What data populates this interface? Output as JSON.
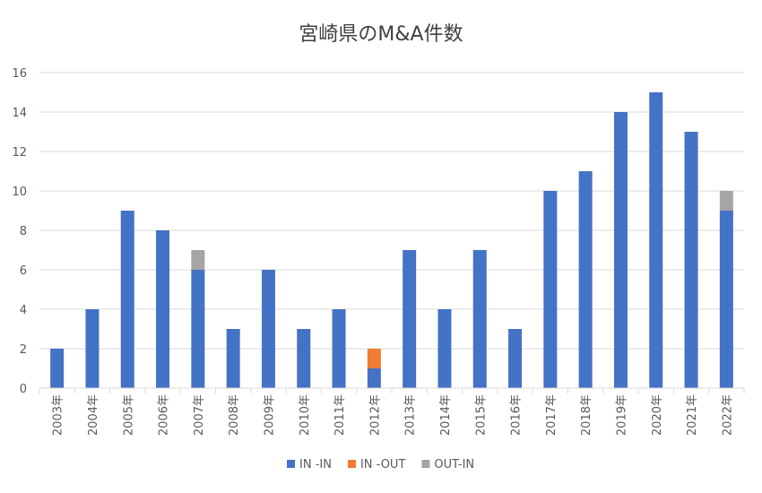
{
  "chart_data": {
    "type": "bar",
    "stacked": true,
    "title": "宮崎県のM&A件数",
    "xlabel": "",
    "ylabel": "",
    "ylim": [
      0,
      16
    ],
    "yticks": [
      0,
      2,
      4,
      6,
      8,
      10,
      12,
      14,
      16
    ],
    "grid": true,
    "legend_position": "bottom",
    "categories": [
      "2003年",
      "2004年",
      "2005年",
      "2006年",
      "2007年",
      "2008年",
      "2009年",
      "2010年",
      "2011年",
      "2012年",
      "2013年",
      "2014年",
      "2015年",
      "2016年",
      "2017年",
      "2018年",
      "2019年",
      "2020年",
      "2021年",
      "2022年"
    ],
    "series": [
      {
        "name": "IN -IN",
        "color": "#4472C4",
        "values": [
          2,
          4,
          9,
          8,
          6,
          3,
          6,
          3,
          4,
          1,
          7,
          4,
          7,
          3,
          10,
          11,
          14,
          15,
          13,
          9
        ]
      },
      {
        "name": "IN -OUT",
        "color": "#ED7D31",
        "values": [
          0,
          0,
          0,
          0,
          0,
          0,
          0,
          0,
          0,
          1,
          0,
          0,
          0,
          0,
          0,
          0,
          0,
          0,
          0,
          0
        ]
      },
      {
        "name": "OUT-IN",
        "color": "#A5A5A5",
        "values": [
          0,
          0,
          0,
          0,
          1,
          0,
          0,
          0,
          0,
          0,
          0,
          0,
          0,
          0,
          0,
          0,
          0,
          0,
          0,
          1
        ]
      }
    ]
  }
}
